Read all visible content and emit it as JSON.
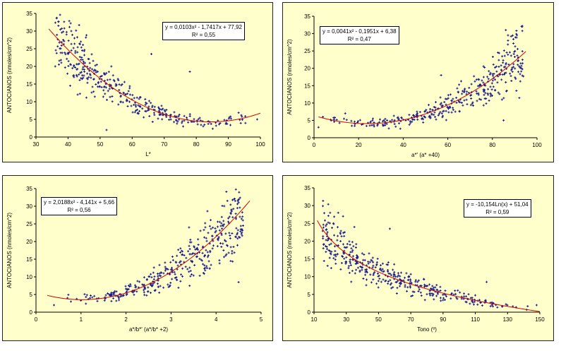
{
  "chart_data": [
    {
      "type": "scatter",
      "xlabel": "L*",
      "ylabel": "ANTOCIANOS (nmoles/cm^2)",
      "xlim": [
        30,
        100
      ],
      "ylim": [
        0,
        35
      ],
      "xticks": [
        "30",
        "40",
        "50",
        "60",
        "70",
        "80",
        "90",
        "100"
      ],
      "yticks": [
        "0",
        "5",
        "10",
        "15",
        "20",
        "25",
        "30",
        "35"
      ],
      "equation": "y = 0,0103x² - 1,7417x + 77,92",
      "r2": "R² = 0,55",
      "trend": {
        "kind": "poly",
        "a": 0.0103,
        "b": -1.7417,
        "c": 77.92,
        "xmin": 34,
        "xmax": 100
      },
      "scatter": {
        "n": 360,
        "xmin": 36,
        "xmax": 99,
        "dist": "beta2",
        "noise": 0.32,
        "seed": 11
      },
      "points": [
        [
          37,
          31.5
        ],
        [
          38.5,
          27.5
        ],
        [
          41,
          30
        ],
        [
          42,
          28
        ],
        [
          43,
          12
        ],
        [
          36,
          20
        ],
        [
          44,
          27
        ],
        [
          99,
          5
        ],
        [
          66,
          23.5
        ],
        [
          78,
          18.5
        ],
        [
          52,
          2
        ]
      ]
    },
    {
      "type": "scatter",
      "xlabel": "a*' (a* +40)",
      "ylabel": "ANTOCIANOS (nmoles/cm^2)",
      "xlim": [
        0,
        100
      ],
      "ylim": [
        0,
        35
      ],
      "xticks": [
        "0",
        "20",
        "40",
        "60",
        "80",
        "100"
      ],
      "yticks": [
        "0",
        "5",
        "10",
        "15",
        "20",
        "25",
        "30",
        "35"
      ],
      "equation": "y = 0,0041x² - 0,1951x + 6,38",
      "r2": "R² = 0,47",
      "trend": {
        "kind": "poly",
        "a": 0.0041,
        "b": -0.1951,
        "c": 6.38,
        "xmin": 2,
        "xmax": 95
      },
      "scatter": {
        "n": 360,
        "xmin": 3,
        "xmax": 94,
        "dist": "beta5",
        "noise": 0.35,
        "seed": 23
      },
      "points": [
        [
          86,
          31
        ],
        [
          87,
          29.5
        ],
        [
          87,
          28
        ],
        [
          93,
          20
        ],
        [
          89,
          19
        ],
        [
          2,
          3
        ],
        [
          4,
          6
        ],
        [
          14,
          7
        ],
        [
          57,
          18
        ],
        [
          85,
          5
        ]
      ]
    },
    {
      "type": "scatter",
      "xlabel": "a*/b*' (a*/b* +2)",
      "ylabel": "ANTOCIANOS (nmoles/cm^2)",
      "xlim": [
        0,
        5
      ],
      "ylim": [
        0,
        35
      ],
      "xticks": [
        "0",
        "1",
        "2",
        "3",
        "4",
        "5"
      ],
      "yticks": [
        "0",
        "5",
        "10",
        "15",
        "20",
        "25",
        "30",
        "35"
      ],
      "equation": "y = 2,0188x² - 4,141x + 5,66",
      "r2": "R² = 0,56",
      "trend": {
        "kind": "poly",
        "a": 2.0188,
        "b": -4.141,
        "c": 5.66,
        "xmin": 0.25,
        "xmax": 4.75
      },
      "scatter": {
        "n": 380,
        "xmin": 0.4,
        "xmax": 4.6,
        "dist": "beta5",
        "noise": 0.35,
        "seed": 37
      },
      "points": [
        [
          4.4,
          32
        ],
        [
          4.3,
          27
        ],
        [
          4.6,
          24.5
        ],
        [
          0.7,
          4
        ],
        [
          0.4,
          2
        ],
        [
          1.2,
          4
        ],
        [
          4.5,
          8.5
        ],
        [
          3.4,
          24
        ],
        [
          4.0,
          23
        ]
      ]
    },
    {
      "type": "scatter",
      "xlabel": "Tono (º)",
      "ylabel": "ANTOCIANOS (nmoles/cm^2)",
      "xlim": [
        10,
        150
      ],
      "ylim": [
        0,
        35
      ],
      "xticks": [
        "10",
        "30",
        "50",
        "70",
        "90",
        "110",
        "130",
        "150"
      ],
      "yticks": [
        "0",
        "5",
        "10",
        "15",
        "20",
        "25",
        "30",
        "35"
      ],
      "equation": "y = -10,154Ln(x) + 51,04",
      "r2": "R² = 0,59",
      "trend": {
        "kind": "log",
        "a": -10.154,
        "b": 51.04,
        "xmin": 12,
        "xmax": 150
      },
      "scatter": {
        "n": 380,
        "xmin": 15,
        "xmax": 145,
        "dist": "beta2",
        "noise": 0.35,
        "seed": 53
      },
      "points": [
        [
          20,
          28
        ],
        [
          25,
          28
        ],
        [
          28,
          27
        ],
        [
          22,
          25
        ],
        [
          16,
          19
        ],
        [
          57,
          23.5
        ],
        [
          117,
          8.5
        ],
        [
          148,
          2
        ],
        [
          35,
          24
        ]
      ]
    }
  ]
}
